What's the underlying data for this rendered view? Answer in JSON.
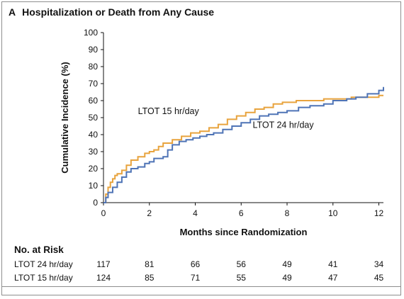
{
  "panel": {
    "letter": "A",
    "title": "Hospitalization or Death from Any Cause"
  },
  "chart_data": {
    "type": "line",
    "step": true,
    "xlabel": "Months since Randomization",
    "ylabel": "Cumulative Incidence (%)",
    "xlim": [
      0,
      12.2
    ],
    "ylim": [
      0,
      100
    ],
    "xticks": [
      0,
      2,
      4,
      6,
      8,
      10,
      12
    ],
    "yticks": [
      0,
      10,
      20,
      30,
      40,
      50,
      60,
      70,
      80,
      90,
      100
    ],
    "grid": false,
    "legend": "inline labels",
    "series": [
      {
        "name": "LTOT 15 hr/day",
        "color": "#e8a33d",
        "x": [
          0,
          0.1,
          0.2,
          0.3,
          0.4,
          0.5,
          0.6,
          0.8,
          1.0,
          1.2,
          1.5,
          1.8,
          2.0,
          2.2,
          2.4,
          2.6,
          3.0,
          3.4,
          3.8,
          4.2,
          4.6,
          5.0,
          5.4,
          5.8,
          6.2,
          6.6,
          7.0,
          7.4,
          7.8,
          8.4,
          9.0,
          9.6,
          10.2,
          10.8,
          11.4,
          12.0,
          12.2
        ],
        "y": [
          0,
          5,
          9,
          12,
          14,
          16,
          17,
          19,
          22,
          25,
          27,
          29,
          30,
          31,
          33,
          35,
          37,
          39,
          41,
          42,
          44,
          46,
          49,
          51,
          53,
          55,
          56,
          58,
          59,
          60,
          60,
          61,
          61,
          62,
          62,
          63,
          63
        ]
      },
      {
        "name": "LTOT 24 hr/day",
        "color": "#4f74b6",
        "x": [
          0,
          0.1,
          0.2,
          0.4,
          0.6,
          0.8,
          1.0,
          1.2,
          1.5,
          1.8,
          2.0,
          2.2,
          2.6,
          2.8,
          3.0,
          3.3,
          3.6,
          3.9,
          4.2,
          4.5,
          4.8,
          5.2,
          5.6,
          6.0,
          6.4,
          6.8,
          7.2,
          7.6,
          8.0,
          8.5,
          9.0,
          9.6,
          10.0,
          10.6,
          11.0,
          11.5,
          12.0,
          12.2
        ],
        "y": [
          0,
          3,
          6,
          9,
          12,
          15,
          18,
          20,
          21,
          23,
          24,
          26,
          27,
          31,
          34,
          36,
          37,
          38,
          39,
          40,
          41,
          43,
          45,
          47,
          49,
          51,
          52,
          53,
          54,
          56,
          57,
          58,
          60,
          61,
          62,
          64,
          66,
          68
        ]
      }
    ],
    "annotations": [
      {
        "text": "LTOT 15 hr/day",
        "x": 1.5,
        "y": 52
      },
      {
        "text": "LTOT 24 hr/day",
        "x": 6.5,
        "y": 44
      }
    ],
    "risk_table": {
      "header": "No. at Risk",
      "timepoints": [
        0,
        2,
        4,
        6,
        8,
        10,
        12
      ],
      "rows": [
        {
          "label": "LTOT 24 hr/day",
          "values": [
            "117",
            "81",
            "66",
            "56",
            "49",
            "41",
            "34"
          ]
        },
        {
          "label": "LTOT 15 hr/day",
          "values": [
            "124",
            "85",
            "71",
            "55",
            "49",
            "47",
            "45"
          ]
        }
      ]
    }
  }
}
